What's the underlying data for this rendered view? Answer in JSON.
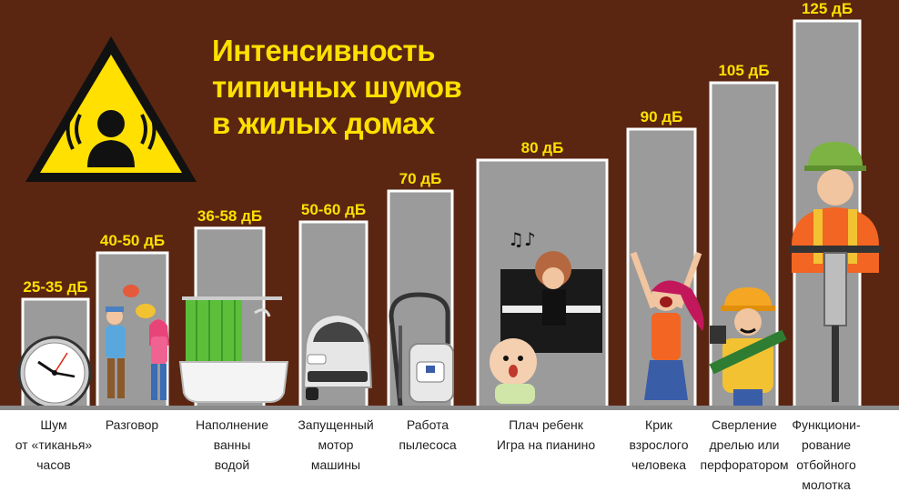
{
  "title_lines": [
    "Интенсивность",
    "типичных шумов",
    "в жилых домах"
  ],
  "colors": {
    "background": "#5a2611",
    "bar": "#9b9b9b",
    "bar_stroke": "#ffffff",
    "label": "#ffe000",
    "caption": "#222222"
  },
  "icons": [
    "warning-noise-triangle-icon",
    "clock-icon",
    "talking-people-icon",
    "bathtub-icon",
    "car-icon",
    "vacuum-cleaner-icon",
    "piano-baby-icon",
    "screaming-person-icon",
    "drill-worker-icon",
    "jackhammer-worker-icon"
  ],
  "chart_data": {
    "type": "bar",
    "title": "Интенсивность типичных шумов в жилых домах",
    "unit": "дБ",
    "ylim": [
      0,
      125
    ],
    "grid": false,
    "categories": [
      "Шум от «тиканья» часов",
      "Разговор",
      "Наполнение ванны водой",
      "Запущенный мотор машины",
      "Работа пылесоса",
      "Плач ребенк Игра на пианино",
      "Крик взрослого человека",
      "Сверление дрелью или перфоратором",
      "Функциони-рование отбойного молотка"
    ],
    "values": [
      35,
      50,
      58,
      60,
      70,
      80,
      90,
      105,
      125
    ],
    "value_labels": [
      "25-35 дБ",
      "40-50 дБ",
      "36-58 дБ",
      "50-60 дБ",
      "70 дБ",
      "80 дБ",
      "90 дБ",
      "105 дБ",
      "125 дБ"
    ],
    "captions": [
      "Шум\nот «тиканья»\nчасов",
      "Разговор",
      "Наполнение\nванны\nводой",
      "Запущенный\nмотор\nмашины",
      "Работа\nпылесоса",
      "Плач ребенк\nИгра на пианино",
      "Крик\nвзрослого\nчеловека",
      "Сверление\nдрелью или\nперфоратором",
      "Функциони-\nрование\nотбойного\nмолотка"
    ]
  }
}
